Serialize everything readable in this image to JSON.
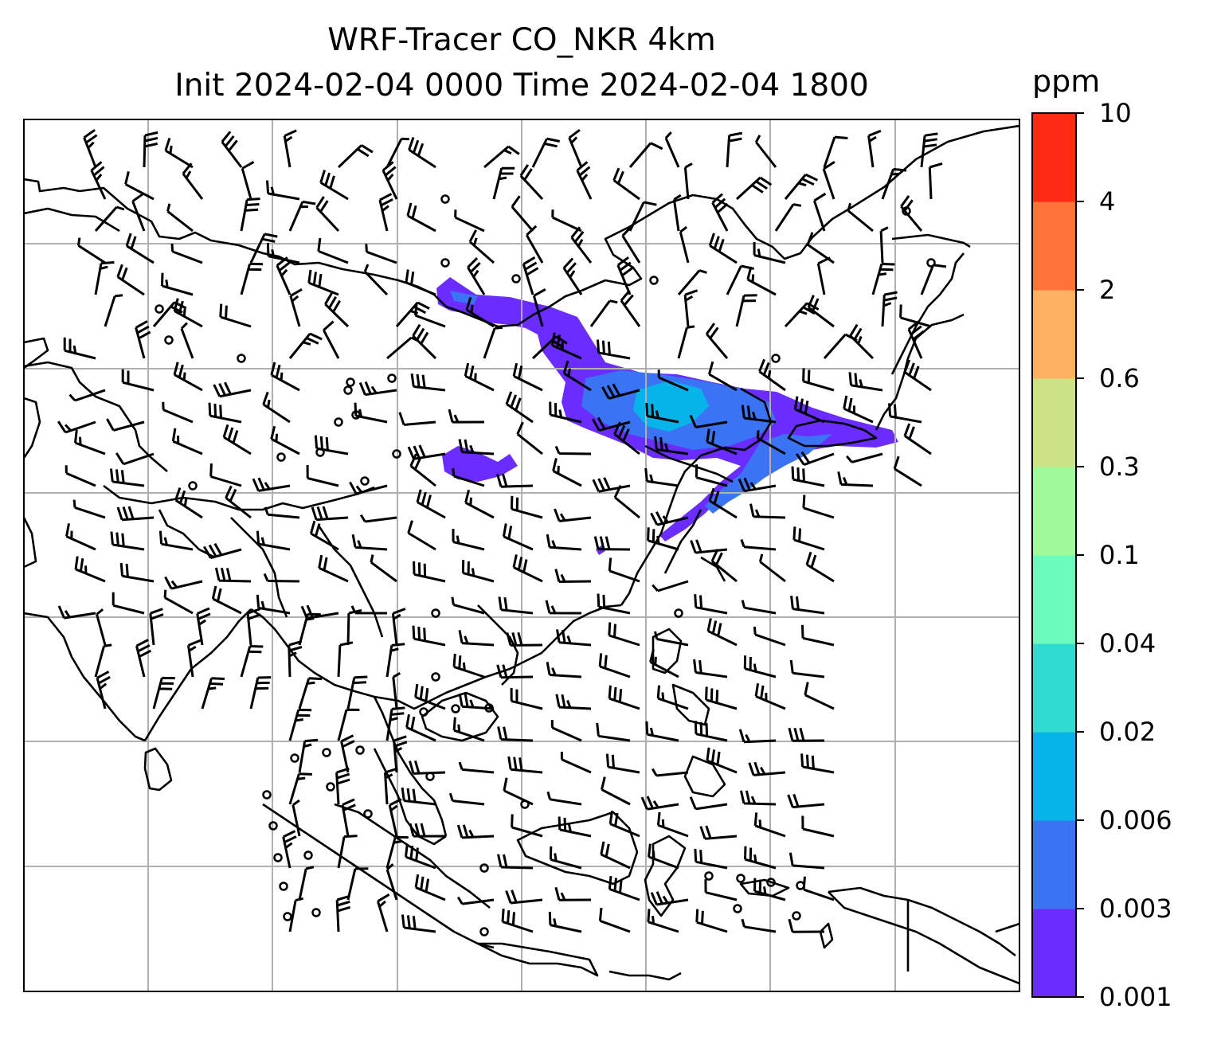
{
  "title": {
    "line1": "WRF-Tracer CO_NKR 4km",
    "line2": "Init 2024-02-04 0000 Time 2024-02-04 1800"
  },
  "colorbar": {
    "units": "ppm",
    "ticks": [
      "0.001",
      "0.003",
      "0.006",
      "0.02",
      "0.04",
      "0.1",
      "0.3",
      "0.6",
      "2",
      "4",
      "10"
    ],
    "colors": [
      "#6a2cff",
      "#3a74f4",
      "#07b4ea",
      "#2fdcd1",
      "#6afbbd",
      "#9ffa9a",
      "#cde284",
      "#feb162",
      "#ff723a",
      "#ff2a16"
    ]
  },
  "map": {
    "gridlines": true,
    "barb_color": "#000000",
    "coastline_color": "#000000",
    "plume_colors": [
      "#6a2cff",
      "#3a74f4",
      "#07b4ea"
    ]
  }
}
